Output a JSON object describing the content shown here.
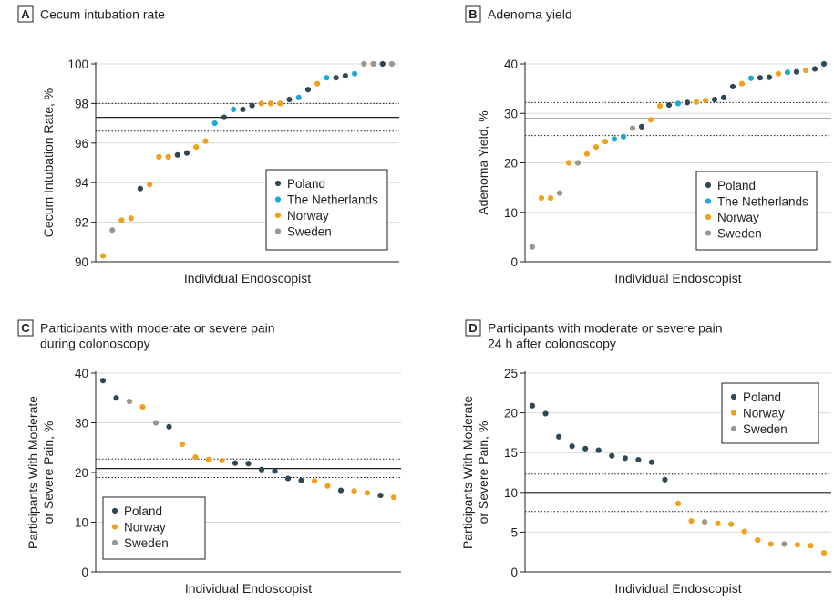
{
  "colors": {
    "Poland": "#2f4858",
    "The Netherlands": "#22a7d4",
    "Norway": "#f0a01c",
    "Sweden": "#9e958c",
    "grid": "#d9d9d9",
    "reference": "#231f20"
  },
  "chart_data": [
    {
      "id": "A",
      "type": "scatter",
      "letter": "A",
      "title": [
        "Cecum intubation rate"
      ],
      "xlabel": "Individual Endoscopist",
      "ylabel": [
        "Cecum Intubation Rate, %"
      ],
      "ylim": [
        90,
        100
      ],
      "yticks": [
        90,
        92,
        94,
        96,
        98,
        100
      ],
      "grid": true,
      "legend_position": "bottom-right",
      "legend": [
        "Poland",
        "The Netherlands",
        "Norway",
        "Sweden"
      ],
      "reference_lines": {
        "mean": 97.3,
        "upper": 98.0,
        "lower": 96.6
      },
      "points": [
        {
          "x": 1,
          "y": 90.3,
          "group": "Norway"
        },
        {
          "x": 2,
          "y": 91.6,
          "group": "Sweden"
        },
        {
          "x": 3,
          "y": 92.1,
          "group": "Norway"
        },
        {
          "x": 4,
          "y": 92.2,
          "group": "Norway"
        },
        {
          "x": 5,
          "y": 93.7,
          "group": "Poland"
        },
        {
          "x": 6,
          "y": 93.9,
          "group": "Norway"
        },
        {
          "x": 7,
          "y": 95.3,
          "group": "Norway"
        },
        {
          "x": 8,
          "y": 95.3,
          "group": "Norway"
        },
        {
          "x": 9,
          "y": 95.4,
          "group": "Poland"
        },
        {
          "x": 10,
          "y": 95.5,
          "group": "Poland"
        },
        {
          "x": 11,
          "y": 95.8,
          "group": "Norway"
        },
        {
          "x": 12,
          "y": 96.1,
          "group": "Norway"
        },
        {
          "x": 13,
          "y": 97.0,
          "group": "The Netherlands"
        },
        {
          "x": 14,
          "y": 97.3,
          "group": "Poland"
        },
        {
          "x": 15,
          "y": 97.7,
          "group": "The Netherlands"
        },
        {
          "x": 16,
          "y": 97.7,
          "group": "Poland"
        },
        {
          "x": 17,
          "y": 97.9,
          "group": "Poland"
        },
        {
          "x": 18,
          "y": 98.0,
          "group": "Norway"
        },
        {
          "x": 19,
          "y": 98.0,
          "group": "Norway"
        },
        {
          "x": 20,
          "y": 98.0,
          "group": "Norway"
        },
        {
          "x": 21,
          "y": 98.2,
          "group": "Poland"
        },
        {
          "x": 22,
          "y": 98.3,
          "group": "The Netherlands"
        },
        {
          "x": 23,
          "y": 98.7,
          "group": "Poland"
        },
        {
          "x": 24,
          "y": 99.0,
          "group": "Norway"
        },
        {
          "x": 25,
          "y": 99.3,
          "group": "The Netherlands"
        },
        {
          "x": 26,
          "y": 99.3,
          "group": "Poland"
        },
        {
          "x": 27,
          "y": 99.4,
          "group": "Poland"
        },
        {
          "x": 28,
          "y": 99.5,
          "group": "The Netherlands"
        },
        {
          "x": 29,
          "y": 100.0,
          "group": "Sweden"
        },
        {
          "x": 30,
          "y": 100.0,
          "group": "Sweden"
        },
        {
          "x": 31,
          "y": 100.0,
          "group": "Poland"
        },
        {
          "x": 32,
          "y": 100.0,
          "group": "Sweden"
        }
      ]
    },
    {
      "id": "B",
      "type": "scatter",
      "letter": "B",
      "title": [
        "Adenoma yield"
      ],
      "xlabel": "Individual Endoscopist",
      "ylabel": [
        "Adenoma Yield, %"
      ],
      "ylim": [
        0,
        40
      ],
      "yticks": [
        0,
        10,
        20,
        30,
        40
      ],
      "grid": true,
      "legend_position": "bottom-right",
      "legend": [
        "Poland",
        "The Netherlands",
        "Norway",
        "Sweden"
      ],
      "reference_lines": {
        "mean": 28.9,
        "upper": 32.2,
        "lower": 25.5
      },
      "points": [
        {
          "x": 1,
          "y": 3.0,
          "group": "Sweden"
        },
        {
          "x": 2,
          "y": 12.9,
          "group": "Norway"
        },
        {
          "x": 3,
          "y": 12.9,
          "group": "Norway"
        },
        {
          "x": 4,
          "y": 13.9,
          "group": "Sweden"
        },
        {
          "x": 5,
          "y": 20.0,
          "group": "Norway"
        },
        {
          "x": 6,
          "y": 20.0,
          "group": "Sweden"
        },
        {
          "x": 7,
          "y": 21.8,
          "group": "Norway"
        },
        {
          "x": 8,
          "y": 23.2,
          "group": "Norway"
        },
        {
          "x": 9,
          "y": 24.3,
          "group": "Norway"
        },
        {
          "x": 10,
          "y": 24.8,
          "group": "The Netherlands"
        },
        {
          "x": 11,
          "y": 25.3,
          "group": "The Netherlands"
        },
        {
          "x": 12,
          "y": 27.0,
          "group": "Sweden"
        },
        {
          "x": 13,
          "y": 27.3,
          "group": "Poland"
        },
        {
          "x": 14,
          "y": 28.7,
          "group": "Norway"
        },
        {
          "x": 15,
          "y": 31.5,
          "group": "Norway"
        },
        {
          "x": 16,
          "y": 31.7,
          "group": "Poland"
        },
        {
          "x": 17,
          "y": 32.0,
          "group": "The Netherlands"
        },
        {
          "x": 18,
          "y": 32.2,
          "group": "Poland"
        },
        {
          "x": 19,
          "y": 32.3,
          "group": "Norway"
        },
        {
          "x": 20,
          "y": 32.6,
          "group": "Norway"
        },
        {
          "x": 21,
          "y": 32.8,
          "group": "Poland"
        },
        {
          "x": 22,
          "y": 33.2,
          "group": "Poland"
        },
        {
          "x": 23,
          "y": 35.4,
          "group": "Poland"
        },
        {
          "x": 24,
          "y": 36.0,
          "group": "Norway"
        },
        {
          "x": 25,
          "y": 37.1,
          "group": "The Netherlands"
        },
        {
          "x": 26,
          "y": 37.2,
          "group": "Poland"
        },
        {
          "x": 27,
          "y": 37.3,
          "group": "Poland"
        },
        {
          "x": 28,
          "y": 38.0,
          "group": "Norway"
        },
        {
          "x": 29,
          "y": 38.3,
          "group": "The Netherlands"
        },
        {
          "x": 30,
          "y": 38.4,
          "group": "Poland"
        },
        {
          "x": 31,
          "y": 38.7,
          "group": "Norway"
        },
        {
          "x": 32,
          "y": 39.0,
          "group": "Poland"
        },
        {
          "x": 33,
          "y": 40.0,
          "group": "Poland"
        }
      ]
    },
    {
      "id": "C",
      "type": "scatter",
      "letter": "C",
      "title": [
        "Participants with moderate or severe pain",
        "during colonoscopy"
      ],
      "xlabel": "Individual Endoscopist",
      "ylabel": [
        "Participants With Moderate",
        "or Severe Pain, %"
      ],
      "ylim": [
        0,
        40
      ],
      "yticks": [
        0,
        10,
        20,
        30,
        40
      ],
      "grid": true,
      "legend_position": "bottom-left",
      "legend": [
        "Poland",
        "Norway",
        "Sweden"
      ],
      "reference_lines": {
        "mean": 20.8,
        "upper": 22.7,
        "lower": 19.0
      },
      "points": [
        {
          "x": 1,
          "y": 38.5,
          "group": "Poland"
        },
        {
          "x": 2,
          "y": 35.0,
          "group": "Poland"
        },
        {
          "x": 3,
          "y": 34.3,
          "group": "Sweden"
        },
        {
          "x": 4,
          "y": 33.2,
          "group": "Norway"
        },
        {
          "x": 5,
          "y": 30.0,
          "group": "Sweden"
        },
        {
          "x": 6,
          "y": 29.2,
          "group": "Poland"
        },
        {
          "x": 7,
          "y": 25.7,
          "group": "Norway"
        },
        {
          "x": 8,
          "y": 23.1,
          "group": "Norway"
        },
        {
          "x": 9,
          "y": 22.6,
          "group": "Norway"
        },
        {
          "x": 10,
          "y": 22.4,
          "group": "Norway"
        },
        {
          "x": 11,
          "y": 21.9,
          "group": "Poland"
        },
        {
          "x": 12,
          "y": 21.8,
          "group": "Poland"
        },
        {
          "x": 13,
          "y": 20.6,
          "group": "Poland"
        },
        {
          "x": 14,
          "y": 20.3,
          "group": "Poland"
        },
        {
          "x": 15,
          "y": 18.8,
          "group": "Poland"
        },
        {
          "x": 16,
          "y": 18.4,
          "group": "Poland"
        },
        {
          "x": 17,
          "y": 18.3,
          "group": "Norway"
        },
        {
          "x": 18,
          "y": 17.3,
          "group": "Norway"
        },
        {
          "x": 19,
          "y": 16.4,
          "group": "Poland"
        },
        {
          "x": 20,
          "y": 16.3,
          "group": "Norway"
        },
        {
          "x": 21,
          "y": 15.9,
          "group": "Norway"
        },
        {
          "x": 22,
          "y": 15.4,
          "group": "Poland"
        },
        {
          "x": 23,
          "y": 15.0,
          "group": "Norway"
        }
      ]
    },
    {
      "id": "D",
      "type": "scatter",
      "letter": "D",
      "title": [
        "Participants with moderate or severe pain",
        "24 h after colonoscopy"
      ],
      "xlabel": "Individual Endoscopist",
      "ylabel": [
        "Participants With Moderate",
        "or Severe Pain, %"
      ],
      "ylim": [
        0,
        25
      ],
      "yticks": [
        0,
        5,
        10,
        15,
        20,
        25
      ],
      "grid": true,
      "legend_position": "top-right",
      "legend": [
        "Poland",
        "Norway",
        "Sweden"
      ],
      "reference_lines": {
        "mean": 10.0,
        "upper": 12.3,
        "lower": 7.6
      },
      "points": [
        {
          "x": 1,
          "y": 20.9,
          "group": "Poland"
        },
        {
          "x": 2,
          "y": 19.9,
          "group": "Poland"
        },
        {
          "x": 3,
          "y": 17.0,
          "group": "Poland"
        },
        {
          "x": 4,
          "y": 15.8,
          "group": "Poland"
        },
        {
          "x": 5,
          "y": 15.5,
          "group": "Poland"
        },
        {
          "x": 6,
          "y": 15.3,
          "group": "Poland"
        },
        {
          "x": 7,
          "y": 14.6,
          "group": "Poland"
        },
        {
          "x": 8,
          "y": 14.3,
          "group": "Poland"
        },
        {
          "x": 9,
          "y": 14.1,
          "group": "Poland"
        },
        {
          "x": 10,
          "y": 13.8,
          "group": "Poland"
        },
        {
          "x": 11,
          "y": 11.6,
          "group": "Poland"
        },
        {
          "x": 12,
          "y": 8.6,
          "group": "Norway"
        },
        {
          "x": 13,
          "y": 6.4,
          "group": "Norway"
        },
        {
          "x": 14,
          "y": 6.3,
          "group": "Sweden"
        },
        {
          "x": 15,
          "y": 6.1,
          "group": "Norway"
        },
        {
          "x": 16,
          "y": 6.0,
          "group": "Norway"
        },
        {
          "x": 17,
          "y": 5.1,
          "group": "Norway"
        },
        {
          "x": 18,
          "y": 4.0,
          "group": "Norway"
        },
        {
          "x": 19,
          "y": 3.5,
          "group": "Norway"
        },
        {
          "x": 20,
          "y": 3.5,
          "group": "Sweden"
        },
        {
          "x": 21,
          "y": 3.4,
          "group": "Norway"
        },
        {
          "x": 22,
          "y": 3.3,
          "group": "Norway"
        },
        {
          "x": 23,
          "y": 2.4,
          "group": "Norway"
        }
      ]
    }
  ]
}
